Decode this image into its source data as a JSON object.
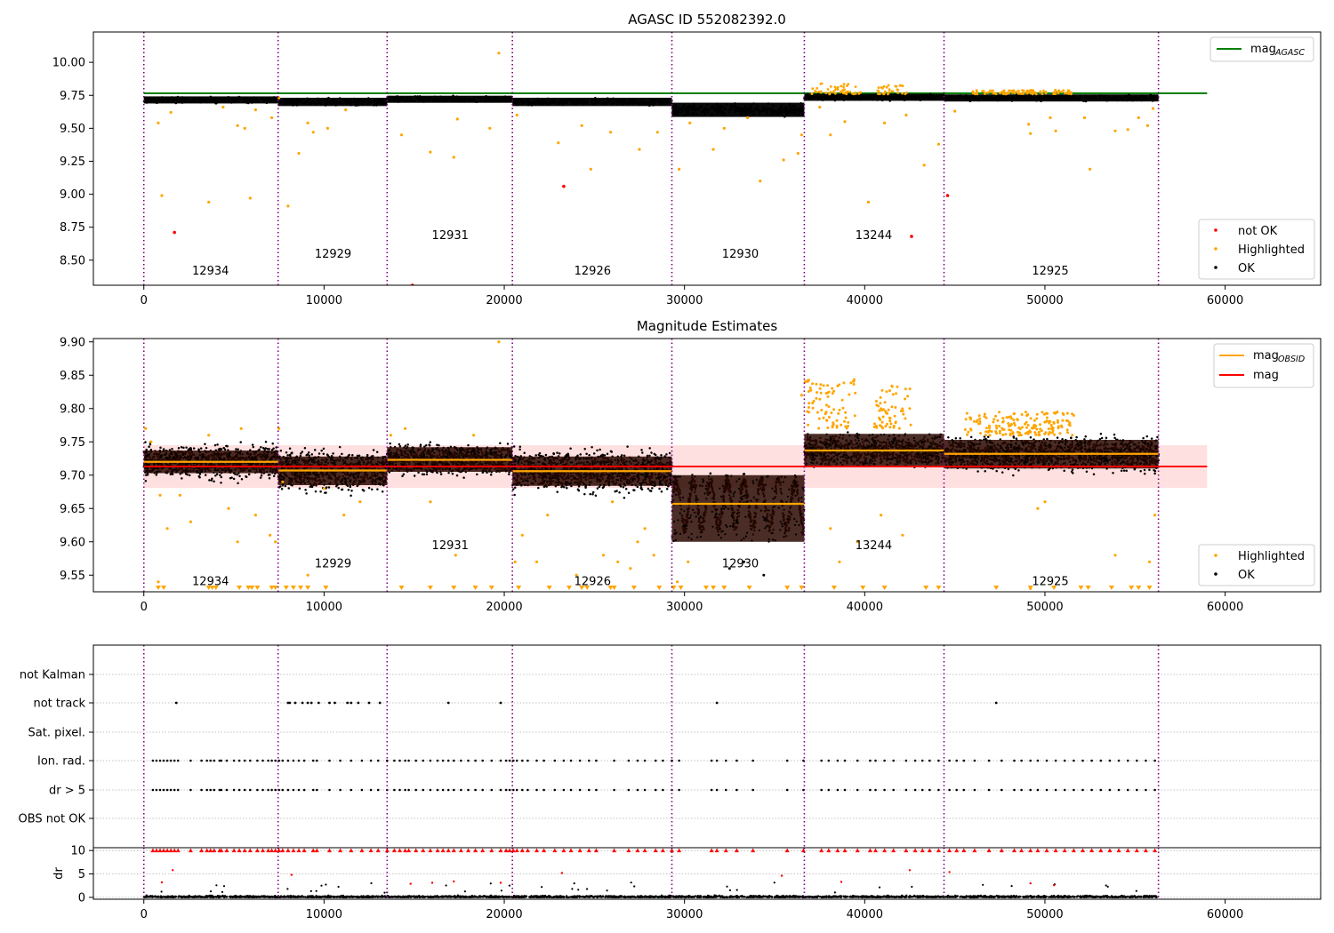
{
  "chart_data": [
    {
      "type": "scatter",
      "title": "AGASC ID 552082392.0",
      "xlim": [
        -2800,
        65300
      ],
      "ylim": [
        8.31,
        10.23
      ],
      "xticks": [
        0,
        10000,
        20000,
        30000,
        40000,
        50000,
        60000
      ],
      "yticks": [
        8.5,
        8.75,
        9.0,
        9.25,
        9.5,
        9.75,
        10.0
      ],
      "xtick_labels": [
        "0",
        "10000",
        "20000",
        "30000",
        "40000",
        "50000",
        "60000"
      ],
      "ytick_labels": [
        "8.50",
        "8.75",
        "9.00",
        "9.25",
        "9.50",
        "9.75",
        "10.00"
      ],
      "obs_boundaries": [
        0,
        7450,
        13500,
        20450,
        29300,
        36650,
        44400,
        56300
      ],
      "obs_labels": [
        {
          "label": "12934",
          "x": 3700,
          "y": 8.39
        },
        {
          "label": "12929",
          "x": 10500,
          "y": 8.52
        },
        {
          "label": "12931",
          "x": 17000,
          "y": 8.66
        },
        {
          "label": "12926",
          "x": 24900,
          "y": 8.39
        },
        {
          "label": "12930",
          "x": 33100,
          "y": 8.52
        },
        {
          "label": "13244",
          "x": 40500,
          "y": 8.66
        },
        {
          "label": "12925",
          "x": 50300,
          "y": 8.39
        }
      ],
      "reference_line": {
        "name": "mag_AGASC",
        "value": 9.765,
        "x_range": [
          0,
          59000
        ],
        "color": "#008000"
      },
      "segments": [
        {
          "x0": 0,
          "x1": 7450,
          "center": 9.715,
          "spread": 0.03
        },
        {
          "x0": 7450,
          "x1": 13500,
          "center": 9.7,
          "spread": 0.035
        },
        {
          "x0": 13500,
          "x1": 20450,
          "center": 9.72,
          "spread": 0.03
        },
        {
          "x0": 20450,
          "x1": 29300,
          "center": 9.7,
          "spread": 0.035
        },
        {
          "x0": 29300,
          "x1": 36650,
          "center": 9.64,
          "spread": 0.06
        },
        {
          "x0": 36650,
          "x1": 44400,
          "center": 9.735,
          "spread": 0.03
        },
        {
          "x0": 44400,
          "x1": 56300,
          "center": 9.73,
          "spread": 0.03
        }
      ],
      "highlighted_points": [
        [
          800,
          9.54
        ],
        [
          1000,
          8.99
        ],
        [
          1500,
          9.62
        ],
        [
          3600,
          8.94
        ],
        [
          4400,
          9.66
        ],
        [
          5200,
          9.52
        ],
        [
          5600,
          9.5
        ],
        [
          5900,
          8.97
        ],
        [
          6200,
          9.64
        ],
        [
          7100,
          9.58
        ],
        [
          7500,
          9.73
        ],
        [
          8000,
          8.91
        ],
        [
          8600,
          9.31
        ],
        [
          9100,
          9.54
        ],
        [
          9400,
          9.47
        ],
        [
          10200,
          9.5
        ],
        [
          11200,
          9.64
        ],
        [
          14300,
          9.45
        ],
        [
          15900,
          9.32
        ],
        [
          17200,
          9.28
        ],
        [
          17400,
          9.57
        ],
        [
          19200,
          9.5
        ],
        [
          19700,
          10.07
        ],
        [
          20700,
          9.6
        ],
        [
          23000,
          9.39
        ],
        [
          24300,
          9.52
        ],
        [
          24800,
          9.19
        ],
        [
          25900,
          9.47
        ],
        [
          27500,
          9.34
        ],
        [
          28500,
          9.47
        ],
        [
          29700,
          9.19
        ],
        [
          30300,
          9.54
        ],
        [
          31600,
          9.34
        ],
        [
          32200,
          9.5
        ],
        [
          33500,
          9.58
        ],
        [
          34200,
          9.1
        ],
        [
          35500,
          9.26
        ],
        [
          36300,
          9.31
        ],
        [
          36500,
          9.45
        ],
        [
          37500,
          9.66
        ],
        [
          38100,
          9.45
        ],
        [
          38900,
          9.55
        ],
        [
          40200,
          8.94
        ],
        [
          41100,
          9.54
        ],
        [
          42300,
          9.6
        ],
        [
          43300,
          9.22
        ],
        [
          44100,
          9.38
        ],
        [
          45000,
          9.63
        ],
        [
          49100,
          9.53
        ],
        [
          49200,
          9.46
        ],
        [
          50300,
          9.58
        ],
        [
          50600,
          9.48
        ],
        [
          52200,
          9.58
        ],
        [
          52500,
          9.19
        ],
        [
          53900,
          9.48
        ],
        [
          54600,
          9.49
        ],
        [
          55200,
          9.58
        ],
        [
          55700,
          9.52
        ],
        [
          56000,
          9.65
        ]
      ],
      "highlighted_bursts": [
        {
          "x0": 36900,
          "x1": 39800,
          "y_low": 9.76,
          "y_high": 9.84
        },
        {
          "x0": 40700,
          "x1": 42400,
          "y_low": 9.76,
          "y_high": 9.83
        },
        {
          "x0": 46000,
          "x1": 51500,
          "y_low": 9.76,
          "y_high": 9.79
        }
      ],
      "not_ok_points": [
        [
          1700,
          8.71
        ],
        [
          14900,
          8.31
        ],
        [
          23300,
          9.06
        ],
        [
          42600,
          8.68
        ],
        [
          44600,
          8.99
        ]
      ],
      "legend": {
        "placement": "top-right",
        "entries": [
          {
            "label": "mag",
            "subscript": "AGASC",
            "color": "#008000"
          }
        ]
      },
      "legend2": {
        "placement": "bottom-right",
        "entries": [
          {
            "label": "not OK",
            "color": "#ff0000"
          },
          {
            "label": "Highlighted",
            "color": "#ffa500"
          },
          {
            "label": "OK",
            "color": "#000000"
          }
        ]
      }
    },
    {
      "type": "scatter",
      "title": "Magnitude Estimates",
      "xlim": [
        -2800,
        65300
      ],
      "ylim": [
        9.525,
        9.905
      ],
      "xticks": [
        0,
        10000,
        20000,
        30000,
        40000,
        50000,
        60000
      ],
      "yticks": [
        9.55,
        9.6,
        9.65,
        9.7,
        9.75,
        9.8,
        9.85,
        9.9
      ],
      "xtick_labels": [
        "0",
        "10000",
        "20000",
        "30000",
        "40000",
        "50000",
        "60000"
      ],
      "ytick_labels": [
        "9.55",
        "9.60",
        "9.65",
        "9.70",
        "9.75",
        "9.80",
        "9.85",
        "9.90"
      ],
      "obs_boundaries": [
        0,
        7450,
        13500,
        20450,
        29300,
        36650,
        44400,
        56300
      ],
      "obs_labels": [
        {
          "label": "12934",
          "x": 3700,
          "y": 9.535
        },
        {
          "label": "12929",
          "x": 10500,
          "y": 9.562
        },
        {
          "label": "12931",
          "x": 17000,
          "y": 9.589
        },
        {
          "label": "12926",
          "x": 24900,
          "y": 9.535
        },
        {
          "label": "12930",
          "x": 33100,
          "y": 9.562
        },
        {
          "label": "13244",
          "x": 40500,
          "y": 9.589
        },
        {
          "label": "12925",
          "x": 50300,
          "y": 9.535
        }
      ],
      "mag": {
        "value": 9.713,
        "band": [
          9.681,
          9.745
        ],
        "x_range": [
          0,
          59000
        ],
        "color": "#ff0000"
      },
      "segments": [
        {
          "x0": 0,
          "x1": 7450,
          "mean": 9.72,
          "band": [
            9.703,
            9.737
          ],
          "spread": 0.02
        },
        {
          "x0": 7450,
          "x1": 13500,
          "mean": 9.707,
          "band": [
            9.685,
            9.728
          ],
          "spread": 0.025
        },
        {
          "x0": 13500,
          "x1": 20450,
          "mean": 9.723,
          "band": [
            9.705,
            9.742
          ],
          "spread": 0.018
        },
        {
          "x0": 20450,
          "x1": 29300,
          "mean": 9.706,
          "band": [
            9.684,
            9.728
          ],
          "spread": 0.025
        },
        {
          "x0": 29300,
          "x1": 36650,
          "mean": 9.657,
          "band": [
            9.6,
            9.7
          ],
          "spread": 0.045
        },
        {
          "x0": 36650,
          "x1": 44400,
          "mean": 9.737,
          "band": [
            9.712,
            9.762
          ],
          "spread": 0.018
        },
        {
          "x0": 44400,
          "x1": 56300,
          "mean": 9.732,
          "band": [
            9.71,
            9.753
          ],
          "spread": 0.02
        }
      ],
      "highlighted_points": [
        [
          100,
          9.77
        ],
        [
          400,
          9.75
        ],
        [
          800,
          9.54
        ],
        [
          900,
          9.67
        ],
        [
          1300,
          9.62
        ],
        [
          2000,
          9.67
        ],
        [
          2600,
          9.63
        ],
        [
          3600,
          9.76
        ],
        [
          4700,
          9.65
        ],
        [
          5200,
          9.6
        ],
        [
          5400,
          9.77
        ],
        [
          6200,
          9.64
        ],
        [
          7000,
          9.61
        ],
        [
          7300,
          9.6
        ],
        [
          7500,
          9.77
        ],
        [
          7700,
          9.69
        ],
        [
          9100,
          9.55
        ],
        [
          10000,
          9.68
        ],
        [
          11100,
          9.64
        ],
        [
          12000,
          9.66
        ],
        [
          13700,
          9.76
        ],
        [
          14500,
          9.77
        ],
        [
          15900,
          9.66
        ],
        [
          17300,
          9.58
        ],
        [
          18300,
          9.76
        ],
        [
          19700,
          9.9
        ],
        [
          20600,
          9.57
        ],
        [
          21000,
          9.61
        ],
        [
          21800,
          9.57
        ],
        [
          22400,
          9.64
        ],
        [
          24000,
          9.55
        ],
        [
          25500,
          9.58
        ],
        [
          26000,
          9.66
        ],
        [
          26300,
          9.57
        ],
        [
          27000,
          9.56
        ],
        [
          27400,
          9.6
        ],
        [
          27800,
          9.62
        ],
        [
          28300,
          9.58
        ],
        [
          29600,
          9.54
        ],
        [
          30200,
          9.57
        ],
        [
          36500,
          9.82
        ],
        [
          36700,
          9.84
        ],
        [
          38100,
          9.62
        ],
        [
          38600,
          9.57
        ],
        [
          39600,
          9.6
        ],
        [
          40900,
          9.64
        ],
        [
          42100,
          9.61
        ],
        [
          49200,
          9.53
        ],
        [
          49600,
          9.65
        ],
        [
          50000,
          9.66
        ],
        [
          53900,
          9.58
        ],
        [
          55800,
          9.57
        ],
        [
          56100,
          9.64
        ]
      ],
      "ok_points_extra": [
        [
          32500,
          9.56
        ],
        [
          33300,
          9.57
        ],
        [
          34400,
          9.55
        ]
      ],
      "highlighted_bursts": [
        {
          "x0": 36750,
          "x1": 39500,
          "y_low": 9.77,
          "y_high": 9.845
        },
        {
          "x0": 40500,
          "x1": 42600,
          "y_low": 9.77,
          "y_high": 9.835
        },
        {
          "x0": 45500,
          "x1": 51600,
          "y_low": 9.76,
          "y_high": 9.795
        }
      ],
      "clipped_x": [
        800,
        1100,
        3600,
        3800,
        4000,
        5300,
        5800,
        6000,
        6300,
        7100,
        7300,
        7900,
        8300,
        8700,
        9100,
        10100,
        14300,
        15900,
        17200,
        18400,
        19300,
        20800,
        22500,
        23600,
        24300,
        24600,
        25900,
        26100,
        27200,
        28600,
        29400,
        29800,
        31200,
        31600,
        32200,
        33600,
        35700,
        36500,
        38300,
        39900,
        41100,
        43400,
        44100,
        47300,
        49200,
        50500,
        52000,
        52400,
        53700,
        54800,
        55200,
        55800
      ],
      "legend": {
        "placement": "top-right",
        "entries": [
          {
            "label": "mag",
            "subscript": "OBSID",
            "color": "#ffa500"
          },
          {
            "label": "mag",
            "subscript": "",
            "color": "#ff0000"
          }
        ]
      },
      "legend2": {
        "placement": "bottom-right",
        "entries": [
          {
            "label": "Highlighted",
            "color": "#ffa500"
          },
          {
            "label": "OK",
            "color": "#000000"
          }
        ]
      }
    },
    {
      "type": "scatter",
      "title": "",
      "xlim": [
        -2800,
        65300
      ],
      "categories": [
        "OBS not OK",
        "dr > 5",
        "Ion. rad.",
        "Sat. pixel.",
        "not track",
        "not Kalman"
      ],
      "obs_boundaries": [
        0,
        7450,
        13500,
        20450,
        29300,
        36650,
        44400,
        56300
      ],
      "not_track_x": [
        1800,
        8000,
        8100,
        8400,
        8800,
        9100,
        9300,
        9700,
        10300,
        10600,
        11300,
        11500,
        11900,
        12500,
        13100,
        16900,
        19800,
        31800,
        47300
      ],
      "flag_x": [
        500,
        700,
        900,
        1100,
        1300,
        1500,
        1700,
        1900,
        2600,
        3200,
        3500,
        3700,
        3900,
        4200,
        4300,
        4600,
        5000,
        5300,
        5600,
        5900,
        6300,
        6600,
        6900,
        7100,
        7300,
        7500,
        7700,
        8000,
        8300,
        8600,
        8900,
        9400,
        9600,
        10300,
        10900,
        11500,
        12100,
        12600,
        13000,
        13500,
        13900,
        14200,
        14500,
        14700,
        15100,
        15500,
        15900,
        16300,
        16600,
        16900,
        17200,
        17600,
        18000,
        18400,
        18800,
        19300,
        19800,
        20100,
        20300,
        20500,
        20700,
        21000,
        21300,
        21800,
        22200,
        22800,
        23300,
        23700,
        24200,
        24700,
        25100,
        26100,
        26900,
        27400,
        27800,
        28400,
        28800,
        29300,
        29700,
        31500,
        31800,
        32300,
        32900,
        33800,
        35700,
        36600,
        37600,
        38000,
        38500,
        38900,
        39600,
        40300,
        40600,
        41100,
        41600,
        42300,
        42800,
        43200,
        43600,
        44100,
        44700,
        45100,
        45500,
        46100,
        46900,
        47600,
        48300,
        48700,
        49200,
        49600,
        50100,
        50600,
        51100,
        51600,
        52100,
        52600,
        53100,
        53600,
        54100,
        54600,
        55100,
        55600,
        56100
      ]
    },
    {
      "type": "scatter",
      "title": "",
      "xlim": [
        -2800,
        65300
      ],
      "ylim": [
        -0.4,
        10.6
      ],
      "ylabel": "dr",
      "yticks": [
        0,
        5,
        10
      ],
      "ytick_labels": [
        "0",
        "5",
        "10"
      ],
      "xticks": [
        0,
        10000,
        20000,
        30000,
        40000,
        50000,
        60000
      ],
      "xtick_labels": [
        "0",
        "10000",
        "20000",
        "30000",
        "40000",
        "50000",
        "60000"
      ],
      "obs_boundaries": [
        0,
        7450,
        13500,
        20450,
        29300,
        36650,
        44400,
        56300
      ],
      "red_points": [
        [
          1600,
          5.8
        ],
        [
          1000,
          3.2
        ],
        [
          8200,
          4.8
        ],
        [
          14800,
          2.9
        ],
        [
          16000,
          3.1
        ],
        [
          17200,
          3.4
        ],
        [
          19800,
          3.1
        ],
        [
          23200,
          5.2
        ],
        [
          35400,
          4.6
        ],
        [
          38700,
          3.3
        ],
        [
          42500,
          5.8
        ],
        [
          44700,
          5.4
        ],
        [
          49200,
          3.0
        ],
        [
          50500,
          2.6
        ]
      ]
    }
  ]
}
